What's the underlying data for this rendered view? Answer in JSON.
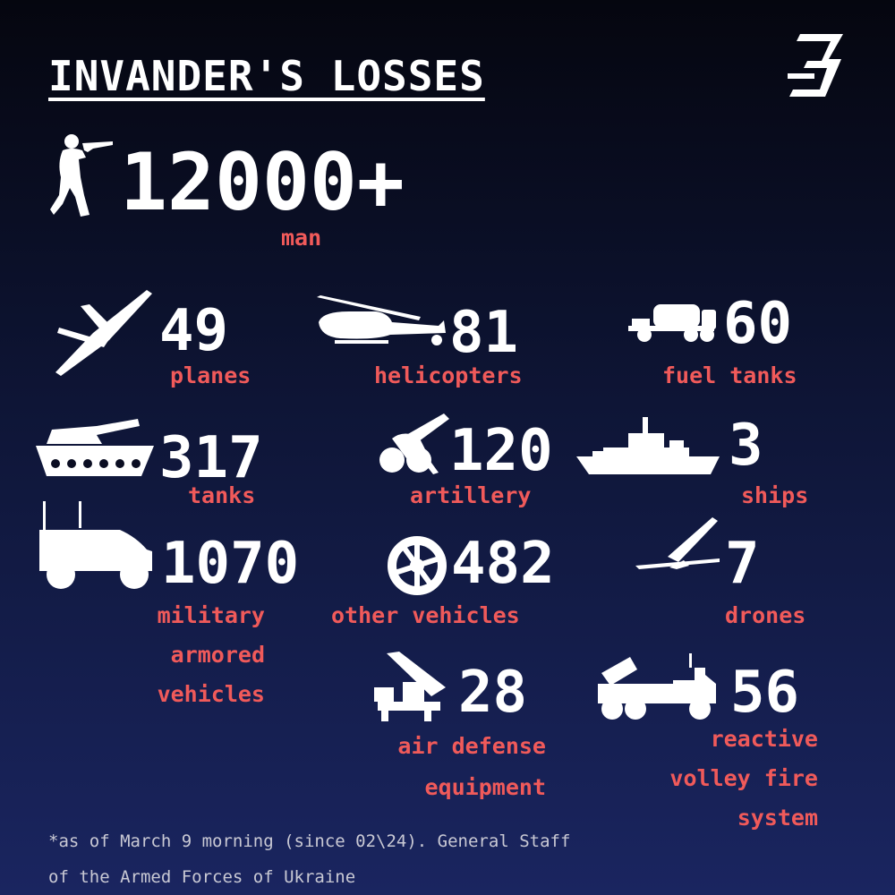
{
  "title": "INVANDER'S LOSSES",
  "personnel": {
    "value": "12000+",
    "label": "man"
  },
  "stats": {
    "planes": {
      "value": "49",
      "label": "planes"
    },
    "helicopters": {
      "value": "81",
      "label": "helicopters"
    },
    "fuel_tanks": {
      "value": "60",
      "label": "fuel tanks"
    },
    "tanks": {
      "value": "317",
      "label": "tanks"
    },
    "artillery": {
      "value": "120",
      "label": "artillery"
    },
    "ships": {
      "value": "3",
      "label": "ships"
    },
    "armored": {
      "value": "1070",
      "label_lines": [
        "military",
        "armored",
        "vehicles"
      ]
    },
    "other_vehicles": {
      "value": "482",
      "label": "other vehicles"
    },
    "drones": {
      "value": "7",
      "label": "drones"
    },
    "air_defense": {
      "value": "28",
      "label_lines": [
        "air defense",
        "equipment"
      ]
    },
    "mlrs": {
      "value": "56",
      "label_lines": [
        "reactive",
        "volley fire",
        "system"
      ]
    }
  },
  "footnote": {
    "line1": "*as of March 9 morning (since 02\\24). General Staff",
    "line2": "of the Armed Forces of Ukraine"
  },
  "colors": {
    "accent": "#f05a5a",
    "text": "#ffffff",
    "background_top": "#05060f",
    "background_bottom": "#1a2560"
  },
  "icons": [
    "soldier-icon",
    "plane-icon",
    "helicopter-icon",
    "fuel-truck-icon",
    "tank-icon",
    "artillery-icon",
    "ship-icon",
    "armored-vehicle-icon",
    "wheel-icon",
    "drone-icon",
    "air-defense-icon",
    "rocket-launcher-icon",
    "logo-icon"
  ]
}
